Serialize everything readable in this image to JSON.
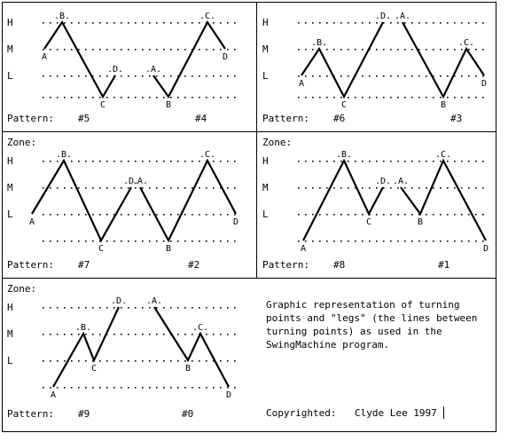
{
  "zone_axis": [
    "H",
    "M",
    "L"
  ],
  "zone_label": "Zone:",
  "pattern_label": "Pattern:",
  "panels": [
    {
      "show_zone": false,
      "left": {
        "number": "#5",
        "points": [
          {
            "label": "A",
            "zone": 1.0,
            "label_pos": "below"
          },
          {
            "label": "B",
            "zone": 0.0,
            "label_pos": "above"
          },
          {
            "label": "C",
            "zone": 3.0,
            "label_pos": "below"
          },
          {
            "label": "D",
            "zone": 2.0,
            "label_pos": "above"
          }
        ]
      },
      "right": {
        "number": "#4",
        "points": [
          {
            "label": "A",
            "zone": 2.0,
            "label_pos": "above"
          },
          {
            "label": "B",
            "zone": 3.0,
            "label_pos": "below"
          },
          {
            "label": "C",
            "zone": 0.0,
            "label_pos": "above"
          },
          {
            "label": "D",
            "zone": 1.0,
            "label_pos": "below"
          }
        ]
      }
    },
    {
      "show_zone": false,
      "left": {
        "number": "#6",
        "points": [
          {
            "label": "A",
            "zone": 2.0,
            "label_pos": "below"
          },
          {
            "label": "B",
            "zone": 1.0,
            "label_pos": "above"
          },
          {
            "label": "C",
            "zone": 3.0,
            "label_pos": "below"
          },
          {
            "label": "D",
            "zone": 0.0,
            "label_pos": "above"
          }
        ]
      },
      "right": {
        "number": "#3",
        "points": [
          {
            "label": "A",
            "zone": 0.0,
            "label_pos": "above"
          },
          {
            "label": "B",
            "zone": 3.0,
            "label_pos": "below"
          },
          {
            "label": "C",
            "zone": 1.0,
            "label_pos": "above"
          },
          {
            "label": "D",
            "zone": 2.0,
            "label_pos": "below"
          }
        ]
      }
    },
    {
      "show_zone": true,
      "left": {
        "number": "#7",
        "points": [
          {
            "label": "A",
            "zone": 2.0,
            "label_pos": "below"
          },
          {
            "label": "B",
            "zone": 0.0,
            "label_pos": "above"
          },
          {
            "label": "C",
            "zone": 3.0,
            "label_pos": "below"
          },
          {
            "label": "D",
            "zone": 1.0,
            "label_pos": "above"
          }
        ]
      },
      "right": {
        "number": "#2",
        "points": [
          {
            "label": "A",
            "zone": 1.0,
            "label_pos": "above"
          },
          {
            "label": "B",
            "zone": 3.0,
            "label_pos": "below"
          },
          {
            "label": "C",
            "zone": 0.0,
            "label_pos": "above"
          },
          {
            "label": "D",
            "zone": 2.0,
            "label_pos": "below"
          }
        ]
      }
    },
    {
      "show_zone": true,
      "left": {
        "number": "#8",
        "points": [
          {
            "label": "A",
            "zone": 3.0,
            "label_pos": "below"
          },
          {
            "label": "B",
            "zone": 0.0,
            "label_pos": "above"
          },
          {
            "label": "C",
            "zone": 2.0,
            "label_pos": "below"
          },
          {
            "label": "D",
            "zone": 1.0,
            "label_pos": "above"
          }
        ]
      },
      "right": {
        "number": "#1",
        "points": [
          {
            "label": "A",
            "zone": 1.0,
            "label_pos": "above"
          },
          {
            "label": "B",
            "zone": 2.0,
            "label_pos": "below"
          },
          {
            "label": "C",
            "zone": 0.0,
            "label_pos": "above"
          },
          {
            "label": "D",
            "zone": 3.0,
            "label_pos": "below"
          }
        ]
      }
    },
    {
      "show_zone": true,
      "left": {
        "number": "#9",
        "points": [
          {
            "label": "A",
            "zone": 3.0,
            "label_pos": "below"
          },
          {
            "label": "B",
            "zone": 1.0,
            "label_pos": "above"
          },
          {
            "label": "C",
            "zone": 2.0,
            "label_pos": "below"
          },
          {
            "label": "D",
            "zone": 0.0,
            "label_pos": "above"
          }
        ]
      },
      "right": {
        "number": "#0",
        "points": [
          {
            "label": "A",
            "zone": 0.0,
            "label_pos": "above"
          },
          {
            "label": "B",
            "zone": 2.0,
            "label_pos": "below"
          },
          {
            "label": "C",
            "zone": 1.0,
            "label_pos": "above"
          },
          {
            "label": "D",
            "zone": 3.0,
            "label_pos": "below"
          }
        ]
      }
    }
  ],
  "description": {
    "lines": [
      "Graphic representation of turning",
      "points and \"legs\" (the lines between",
      "turning points) as used in the",
      "SwingMachine program."
    ],
    "copyright_label": "Copyrighted:",
    "author": "Clyde Lee 1997"
  }
}
